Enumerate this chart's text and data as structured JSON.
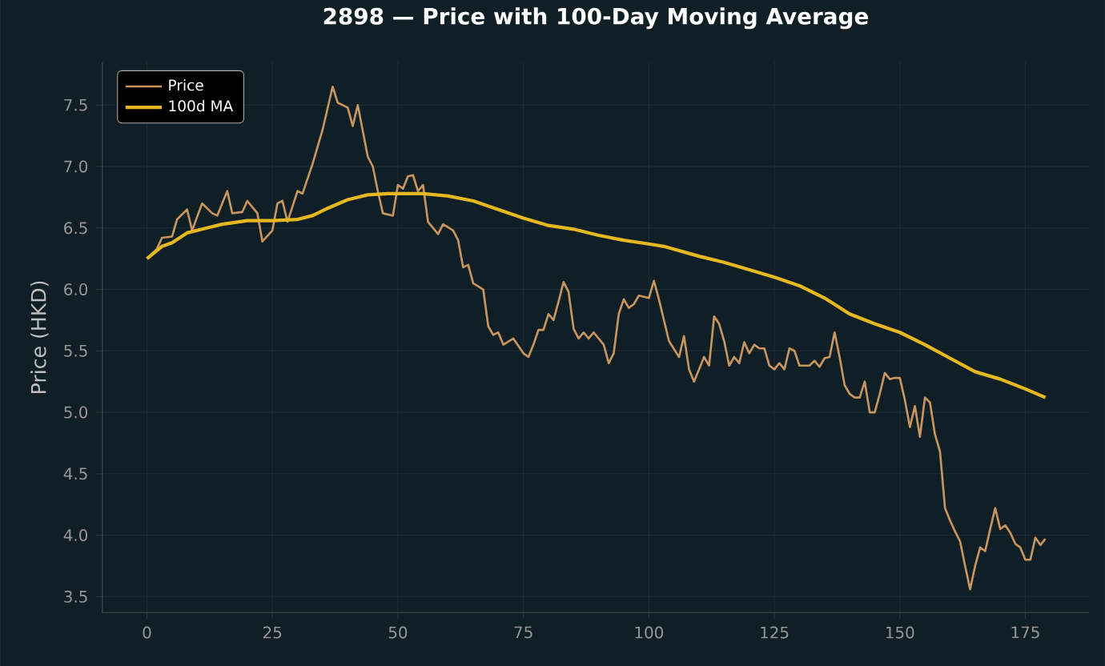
{
  "chart_data": {
    "type": "line",
    "title": "2898 — Price with 100-Day Moving Average",
    "ylabel": "Price (HKD)",
    "xlim": [
      -8.9,
      187.7
    ],
    "ylim": [
      3.37,
      7.85
    ],
    "xticks": [
      0,
      25,
      50,
      75,
      100,
      125,
      150,
      175
    ],
    "yticks": [
      {
        "value": 3.5,
        "label": "3.5"
      },
      {
        "value": 4.0,
        "label": "4.0"
      },
      {
        "value": 4.5,
        "label": "4.5"
      },
      {
        "value": 5.0,
        "label": "5.0"
      },
      {
        "value": 5.5,
        "label": "5.5"
      },
      {
        "value": 6.0,
        "label": "6.0"
      },
      {
        "value": 6.5,
        "label": "6.5"
      },
      {
        "value": 7.0,
        "label": "7.0"
      },
      {
        "value": 7.5,
        "label": "7.5"
      }
    ],
    "grid": true,
    "legend": "top left",
    "series": [
      {
        "name": "Price",
        "color": "#c8955f",
        "x": [
          0,
          2,
          3,
          5,
          6,
          8,
          9,
          11,
          13,
          14,
          16,
          17,
          19,
          20,
          22,
          23,
          25,
          26,
          27,
          28,
          30,
          31,
          33,
          35,
          37,
          38,
          40,
          41,
          42,
          44,
          45,
          46,
          47,
          49,
          50,
          51,
          52,
          53,
          54,
          55,
          56,
          58,
          59,
          61,
          62,
          63,
          64,
          65,
          67,
          68,
          69,
          70,
          71,
          73,
          75,
          76,
          77,
          78,
          79,
          80,
          81,
          82,
          83,
          84,
          85,
          86,
          87,
          88,
          89,
          91,
          92,
          93,
          94,
          95,
          96,
          97,
          98,
          100,
          101,
          102,
          104,
          106,
          107,
          108,
          109,
          111,
          112,
          113,
          114,
          115,
          116,
          117,
          118,
          119,
          120,
          121,
          122,
          123,
          124,
          125,
          126,
          127,
          128,
          129,
          130,
          132,
          133,
          134,
          135,
          136,
          137,
          138,
          139,
          140,
          141,
          142,
          143,
          144,
          145,
          146,
          147,
          148,
          149,
          150,
          151,
          152,
          153,
          154,
          155,
          156,
          157,
          158,
          159,
          160,
          161,
          162,
          163,
          164,
          165,
          166,
          167,
          168,
          169,
          170,
          171,
          172,
          173,
          174,
          175,
          176,
          177,
          178,
          179
        ],
        "values": [
          6.25,
          6.33,
          6.42,
          6.43,
          6.57,
          6.65,
          6.48,
          6.7,
          6.62,
          6.6,
          6.8,
          6.62,
          6.63,
          6.72,
          6.62,
          6.39,
          6.48,
          6.7,
          6.72,
          6.55,
          6.8,
          6.78,
          7.02,
          7.3,
          7.65,
          7.52,
          7.48,
          7.33,
          7.5,
          7.08,
          7.0,
          6.8,
          6.62,
          6.6,
          6.85,
          6.82,
          6.92,
          6.93,
          6.8,
          6.85,
          6.55,
          6.45,
          6.53,
          6.48,
          6.4,
          6.18,
          6.2,
          6.05,
          6.0,
          5.7,
          5.63,
          5.65,
          5.55,
          5.6,
          5.48,
          5.45,
          5.55,
          5.67,
          5.67,
          5.8,
          5.75,
          5.9,
          6.06,
          5.98,
          5.68,
          5.6,
          5.65,
          5.6,
          5.65,
          5.55,
          5.4,
          5.48,
          5.8,
          5.92,
          5.85,
          5.88,
          5.95,
          5.93,
          6.07,
          5.92,
          5.58,
          5.45,
          5.62,
          5.35,
          5.25,
          5.45,
          5.38,
          5.78,
          5.72,
          5.58,
          5.38,
          5.45,
          5.4,
          5.57,
          5.48,
          5.55,
          5.52,
          5.52,
          5.38,
          5.35,
          5.4,
          5.35,
          5.52,
          5.5,
          5.38,
          5.38,
          5.42,
          5.37,
          5.44,
          5.45,
          5.65,
          5.45,
          5.22,
          5.15,
          5.12,
          5.12,
          5.25,
          5.0,
          5.0,
          5.15,
          5.32,
          5.27,
          5.28,
          5.28,
          5.1,
          4.88,
          5.05,
          4.8,
          5.12,
          5.08,
          4.82,
          4.68,
          4.22,
          4.12,
          4.03,
          3.95,
          3.75,
          3.56,
          3.75,
          3.9,
          3.87,
          4.05,
          4.22,
          4.05,
          4.08,
          4.02,
          3.93,
          3.9,
          3.8,
          3.8,
          3.98,
          3.92,
          3.97
        ]
      },
      {
        "name": "100d MA",
        "color": "#e6b820",
        "x": [
          0,
          3,
          5,
          8,
          12,
          15,
          20,
          25,
          30,
          33,
          36,
          40,
          44,
          48,
          55,
          60,
          65,
          70,
          75,
          80,
          85,
          90,
          95,
          100,
          103,
          110,
          115,
          120,
          125,
          130,
          135,
          140,
          145,
          150,
          155,
          160,
          165,
          170,
          175,
          179
        ],
        "values": [
          6.25,
          6.35,
          6.38,
          6.46,
          6.5,
          6.53,
          6.56,
          6.56,
          6.57,
          6.6,
          6.66,
          6.73,
          6.77,
          6.78,
          6.78,
          6.76,
          6.72,
          6.65,
          6.58,
          6.52,
          6.49,
          6.44,
          6.4,
          6.37,
          6.35,
          6.27,
          6.22,
          6.16,
          6.1,
          6.03,
          5.93,
          5.8,
          5.72,
          5.65,
          5.55,
          5.44,
          5.33,
          5.27,
          5.19,
          5.12
        ]
      }
    ]
  }
}
